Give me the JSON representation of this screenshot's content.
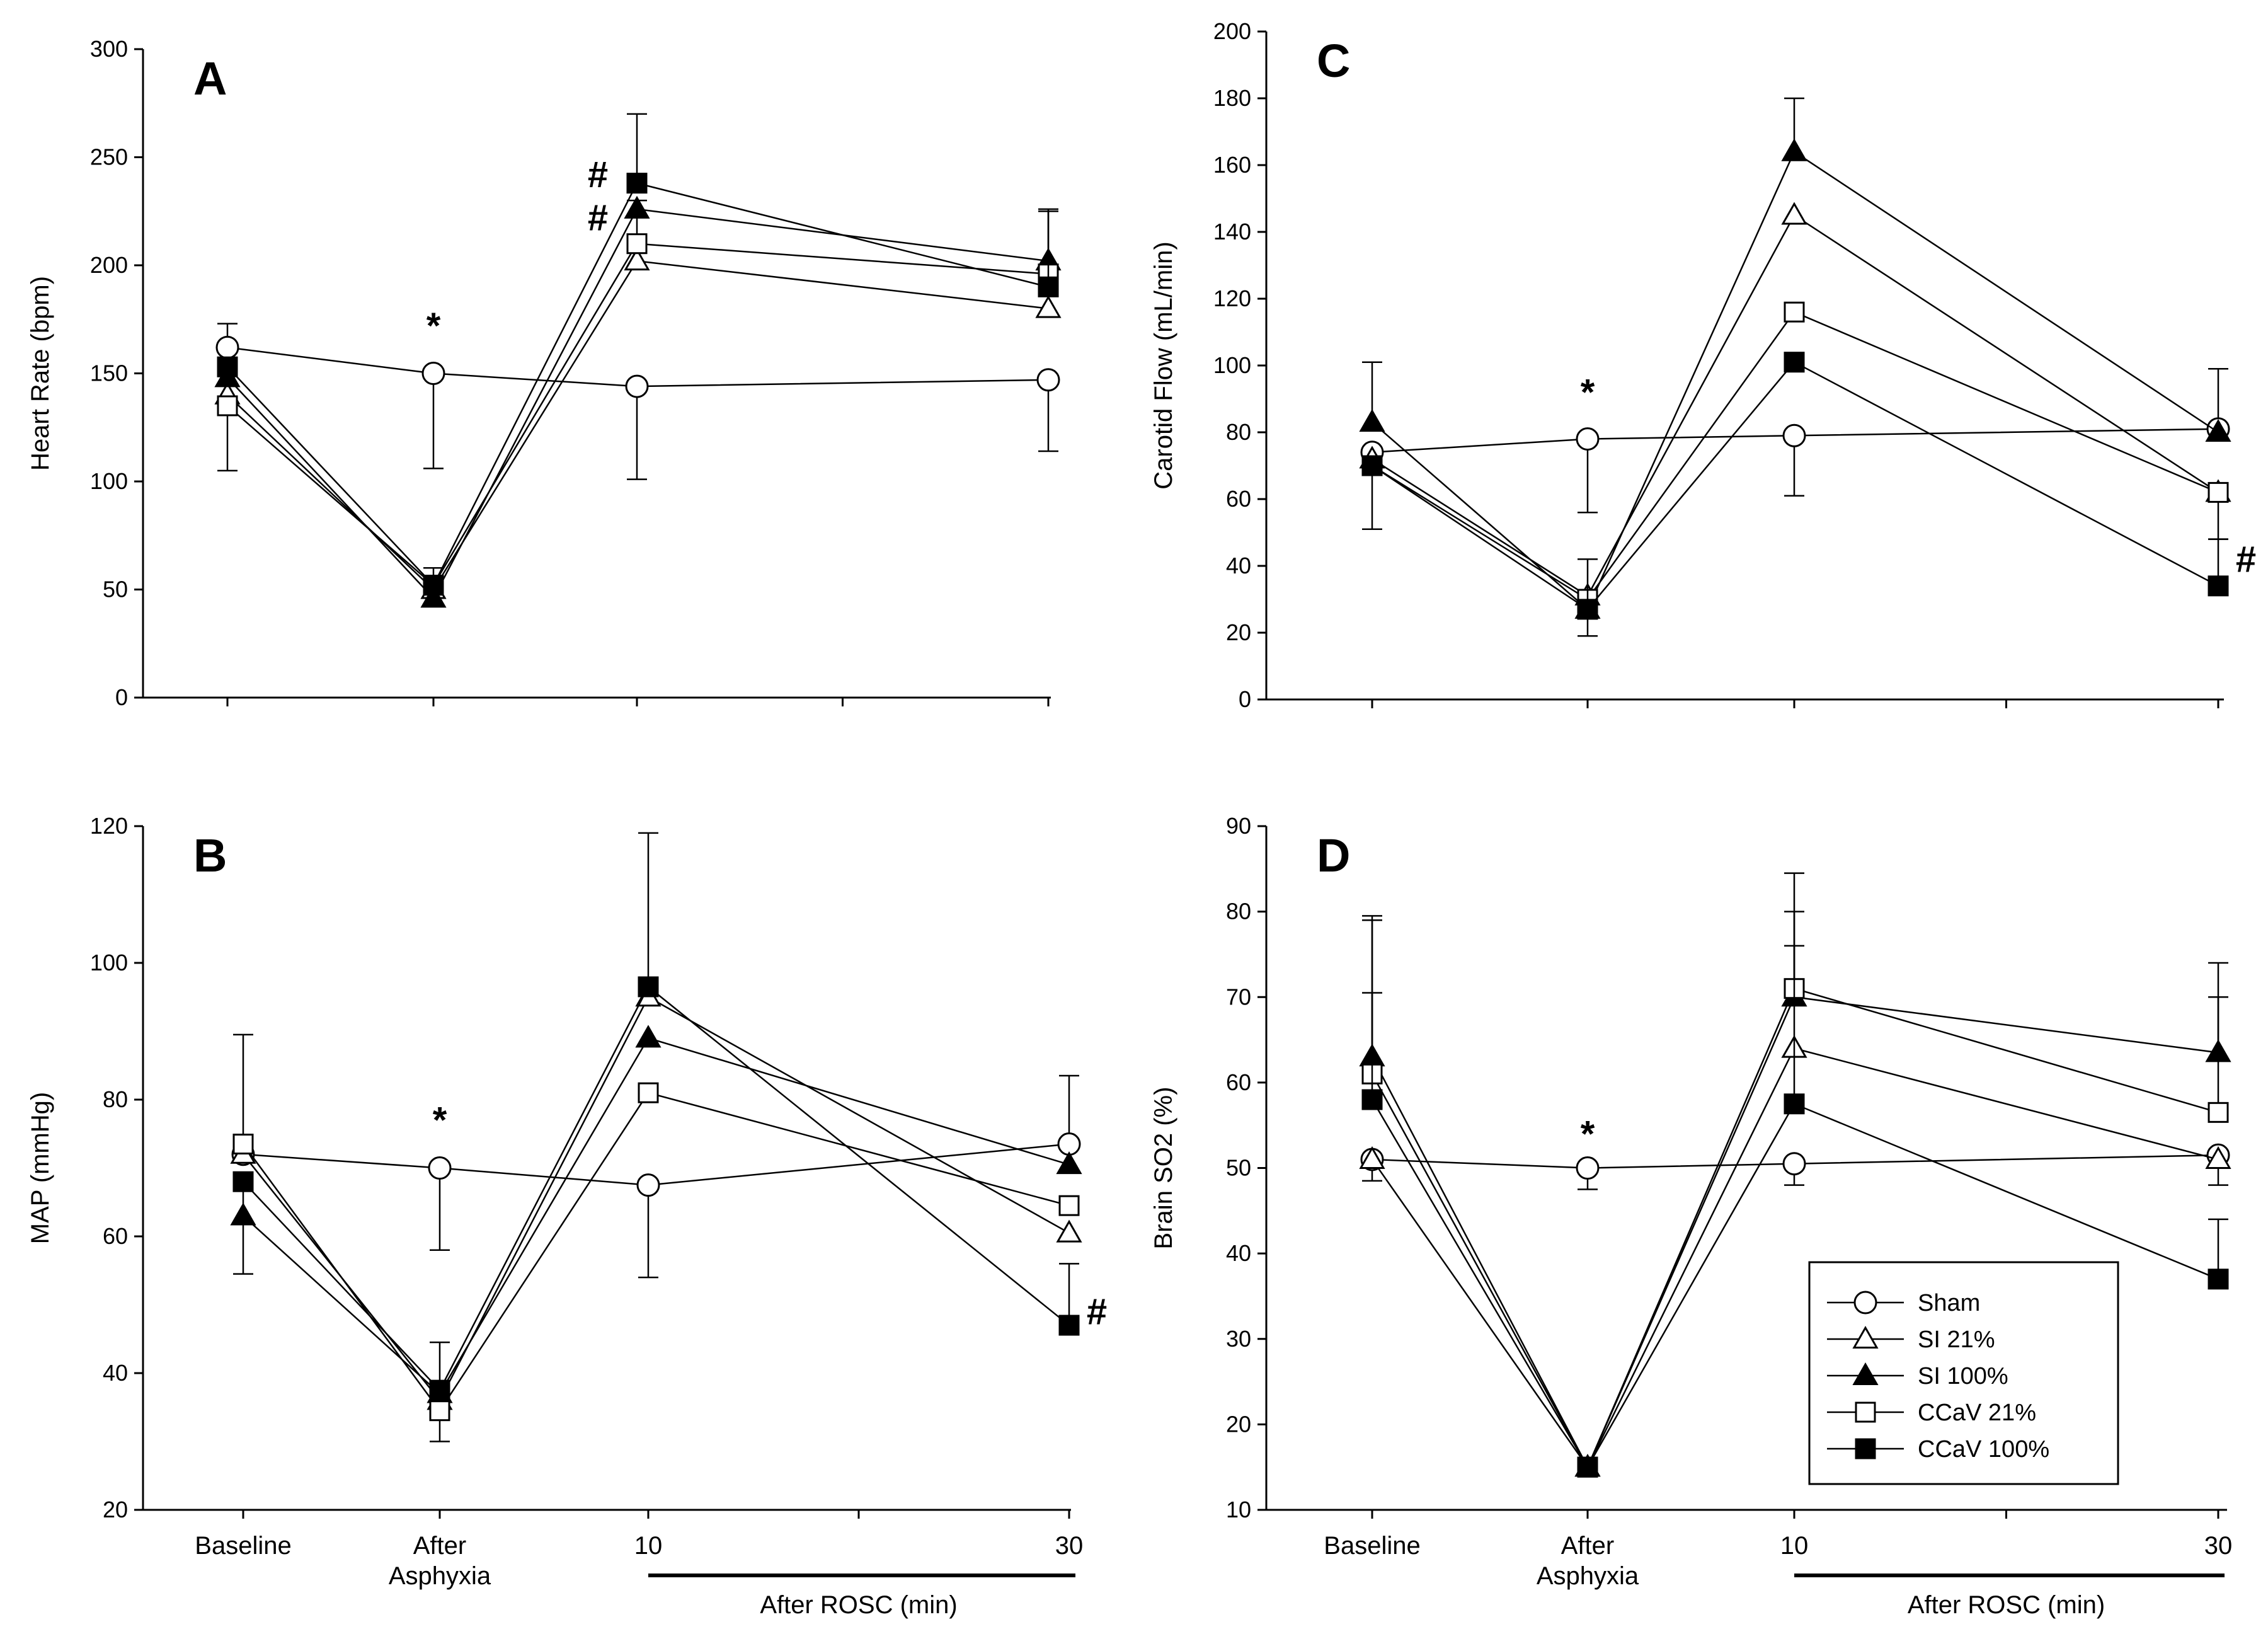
{
  "figure": {
    "series_names": [
      "Sham",
      "SI 21%",
      "SI 100%",
      "CCaV 21%",
      "CCaV 100%"
    ],
    "x_categories": [
      "Baseline",
      "After\nAsphyxia",
      "10",
      "30"
    ],
    "x_bracket_label": "After ROSC (min)",
    "legend": {
      "placement": "bottom-right of panel D",
      "entries": [
        {
          "name": "Sham",
          "marker": "circle-open"
        },
        {
          "name": "SI 21%",
          "marker": "triangle-open"
        },
        {
          "name": "SI 100%",
          "marker": "triangle-filled"
        },
        {
          "name": "CCaV 21%",
          "marker": "square-open"
        },
        {
          "name": "CCaV 100%",
          "marker": "square-filled"
        }
      ]
    }
  },
  "chart_data": [
    {
      "panel": "A",
      "type": "line",
      "ylabel": "Heart Rate (bpm)",
      "ylim": [
        0,
        300
      ],
      "yticks": [
        0,
        50,
        100,
        150,
        200,
        250,
        300
      ],
      "x": [
        "Baseline",
        "After Asphyxia",
        "10",
        "30"
      ],
      "series": [
        {
          "name": "Sham",
          "values": [
            162,
            150,
            144,
            147
          ],
          "err_up": [
            11,
            0,
            0,
            0
          ],
          "err_down": [
            0,
            44,
            43,
            33
          ]
        },
        {
          "name": "SI 21%",
          "values": [
            140,
            50,
            202,
            180
          ],
          "err_up": [
            0,
            0,
            0,
            0
          ],
          "err_down": [
            0,
            0,
            0,
            0
          ]
        },
        {
          "name": "SI 100%",
          "values": [
            148,
            46,
            226,
            202
          ],
          "err_up": [
            0,
            0,
            0,
            0
          ],
          "err_down": [
            0,
            0,
            0,
            0
          ]
        },
        {
          "name": "CCaV 21%",
          "values": [
            135,
            52,
            210,
            196
          ],
          "err_up": [
            0,
            0,
            20,
            29
          ],
          "err_down": [
            30,
            0,
            0,
            0
          ]
        },
        {
          "name": "CCaV 100%",
          "values": [
            153,
            52,
            238,
            190
          ],
          "err_up": [
            0,
            8,
            32,
            36
          ],
          "err_down": [
            0,
            0,
            0,
            0
          ]
        }
      ],
      "annotations": [
        {
          "text": "*",
          "x": "After Asphyxia",
          "y": 172
        },
        {
          "text": "#",
          "x": "10",
          "y": 242
        },
        {
          "text": "#",
          "x": "10",
          "y": 222
        }
      ]
    },
    {
      "panel": "B",
      "type": "line",
      "ylabel": "MAP (mmHg)",
      "ylim": [
        20,
        120
      ],
      "yticks": [
        20,
        40,
        60,
        80,
        100,
        120
      ],
      "x": [
        "Baseline",
        "After Asphyxia",
        "10",
        "30"
      ],
      "series": [
        {
          "name": "Sham",
          "values": [
            72,
            70,
            67.5,
            73.5
          ],
          "err_up": [
            0,
            0,
            0,
            10
          ],
          "err_down": [
            0,
            12,
            13.5,
            0
          ]
        },
        {
          "name": "SI 21%",
          "values": [
            72,
            36,
            95,
            60.5
          ],
          "err_up": [
            0,
            0,
            0,
            0
          ],
          "err_down": [
            0,
            0,
            0,
            0
          ]
        },
        {
          "name": "SI 100%",
          "values": [
            63,
            37,
            89,
            70.5
          ],
          "err_up": [
            0,
            0,
            0,
            0
          ],
          "err_down": [
            0,
            0,
            0,
            0
          ]
        },
        {
          "name": "CCaV 21%",
          "values": [
            73.5,
            34.5,
            81,
            64.5
          ],
          "err_up": [
            16,
            0,
            0,
            0
          ],
          "err_down": [
            0,
            4.5,
            0,
            0
          ]
        },
        {
          "name": "CCaV 100%",
          "values": [
            68,
            37.5,
            96.5,
            47
          ],
          "err_up": [
            0,
            7,
            22.5,
            9
          ],
          "err_down": [
            13.5,
            0,
            0,
            0
          ]
        }
      ],
      "annotations": [
        {
          "text": "*",
          "x": "After Asphyxia",
          "y": 77
        },
        {
          "text": "#",
          "x": "30",
          "y": 49
        }
      ]
    },
    {
      "panel": "C",
      "type": "line",
      "ylabel": "Carotid Flow (mL/min)",
      "ylim": [
        0,
        200
      ],
      "yticks": [
        0,
        20,
        40,
        60,
        80,
        100,
        120,
        140,
        160,
        180,
        200
      ],
      "x": [
        "Baseline",
        "After Asphyxia",
        "10",
        "30"
      ],
      "series": [
        {
          "name": "Sham",
          "values": [
            74,
            78,
            79,
            81
          ],
          "err_up": [
            0,
            0,
            0,
            18
          ],
          "err_down": [
            0,
            22,
            18,
            0
          ]
        },
        {
          "name": "SI 21%",
          "values": [
            72,
            31,
            145,
            62
          ],
          "err_up": [
            0,
            0,
            0,
            0
          ],
          "err_down": [
            0,
            0,
            0,
            0
          ]
        },
        {
          "name": "SI 100%",
          "values": [
            83,
            27,
            164,
            80
          ],
          "err_up": [
            18,
            0,
            16,
            0
          ],
          "err_down": [
            0,
            0,
            0,
            0
          ]
        },
        {
          "name": "CCaV 21%",
          "values": [
            70,
            30,
            116,
            62
          ],
          "err_up": [
            0,
            0,
            0,
            0
          ],
          "err_down": [
            0,
            11,
            0,
            14
          ]
        },
        {
          "name": "CCaV 100%",
          "values": [
            70,
            27,
            101,
            34
          ],
          "err_up": [
            0,
            15,
            0,
            14
          ],
          "err_down": [
            19,
            0,
            0,
            0
          ]
        }
      ],
      "annotations": [
        {
          "text": "*",
          "x": "After Asphyxia",
          "y": 92
        },
        {
          "text": "#",
          "x": "30",
          "y": 42
        }
      ]
    },
    {
      "panel": "D",
      "type": "line",
      "ylabel": "Brain SO2 (%)",
      "ylim": [
        10,
        90
      ],
      "yticks": [
        10,
        20,
        30,
        40,
        50,
        60,
        70,
        80,
        90
      ],
      "x": [
        "Baseline",
        "After Asphyxia",
        "10",
        "30"
      ],
      "series": [
        {
          "name": "Sham",
          "values": [
            51,
            50,
            50.5,
            51.5
          ],
          "err_up": [
            0,
            0,
            0,
            0
          ],
          "err_down": [
            2.5,
            2.5,
            2.5,
            3.5
          ]
        },
        {
          "name": "SI 21%",
          "values": [
            51,
            15,
            64,
            51
          ],
          "err_up": [
            0,
            0,
            0,
            0
          ],
          "err_down": [
            0,
            0,
            0,
            0
          ]
        },
        {
          "name": "SI 100%",
          "values": [
            63,
            15,
            70,
            63.5
          ],
          "err_up": [
            16.5,
            0,
            14.5,
            10.5
          ],
          "err_down": [
            0,
            0,
            0,
            0
          ]
        },
        {
          "name": "CCaV 21%",
          "values": [
            61,
            15,
            71,
            56.5
          ],
          "err_up": [
            18,
            0,
            9,
            13.5
          ],
          "err_down": [
            0,
            0,
            0,
            0
          ]
        },
        {
          "name": "CCaV 100%",
          "values": [
            58,
            15,
            57.5,
            37
          ],
          "err_up": [
            12.5,
            0,
            18.5,
            7
          ],
          "err_down": [
            0,
            0,
            0,
            0
          ]
        }
      ],
      "annotations": [
        {
          "text": "*",
          "x": "After Asphyxia",
          "y": 54
        }
      ]
    }
  ]
}
